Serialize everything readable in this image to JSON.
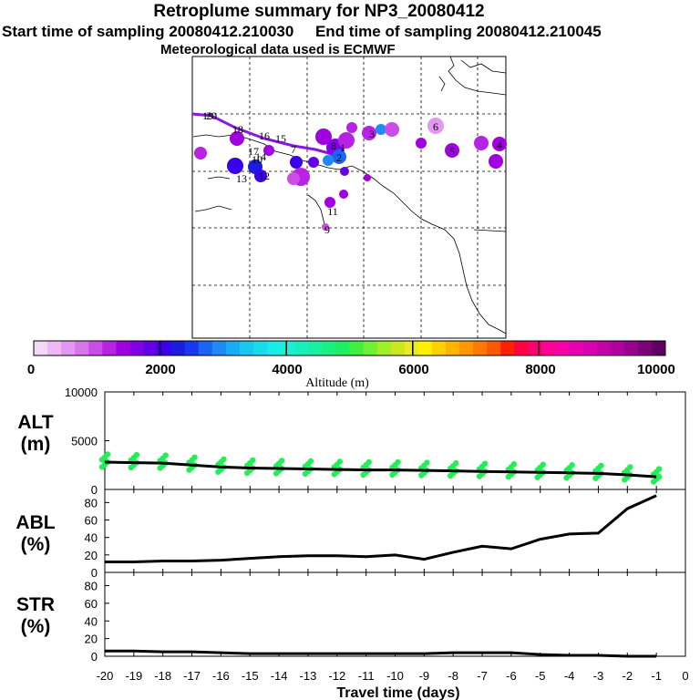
{
  "header": {
    "title": "Retroplume summary for NP3_20080412",
    "start_label": "Start time of sampling 20080412.210030",
    "end_label": "End time of sampling 20080412.210045",
    "met_label": "Meteorological data used is ECMWF"
  },
  "colorbar": {
    "ticks": [
      "0",
      "2000",
      "4000",
      "6000",
      "8000",
      "10000"
    ],
    "label": "Altitude (m)",
    "colors": [
      "#f4d8f8",
      "#eeb8f4",
      "#e298f0",
      "#d874ec",
      "#cc4ce8",
      "#b822e4",
      "#a000e0",
      "#8400e4",
      "#6400e8",
      "#3a00ec",
      "#1c1ce0",
      "#1838f0",
      "#1c64f4",
      "#1c8cf4",
      "#18acf4",
      "#18c8f0",
      "#18dcec",
      "#18ece8",
      "#18f0d8",
      "#18f0bc",
      "#18f0a0",
      "#18f080",
      "#1cf060",
      "#40f040",
      "#70f034",
      "#a0f028",
      "#cce620",
      "#ecec1c",
      "#fff000",
      "#ffd000",
      "#ffb400",
      "#ff9800",
      "#ff7800",
      "#ff5800",
      "#ff2000",
      "#ff0040",
      "#ff0070",
      "#ff0094",
      "#f800a8",
      "#e800b0",
      "#d800b0",
      "#c400a8",
      "#b000a0",
      "#980090",
      "#7c0078",
      "#600060"
    ]
  },
  "map": {
    "plume_labels": [
      "20",
      "19",
      "18",
      "17",
      "16",
      "15",
      "14",
      "13",
      "12",
      "11",
      "10",
      "9",
      "8",
      "7",
      "6",
      "5",
      "4",
      "3",
      "2",
      "1"
    ]
  },
  "chart_data": [
    {
      "type": "line",
      "name": "ALT",
      "ylabel": "ALT\n(m)",
      "ylabel_line1": "ALT",
      "ylabel_line2": "(m)",
      "yticks": [
        "10000",
        "5000",
        "0"
      ],
      "ylim": [
        0,
        10000
      ],
      "x": [
        -20,
        -19,
        -18,
        -17,
        -16,
        -15,
        -14,
        -13,
        -12,
        -11,
        -10,
        -9,
        -8,
        -7,
        -6,
        -5,
        -4,
        -3,
        -2,
        -1
      ],
      "values": [
        2800,
        2750,
        2700,
        2500,
        2300,
        2200,
        2150,
        2100,
        2050,
        2000,
        2000,
        1950,
        1900,
        1850,
        1800,
        1750,
        1700,
        1650,
        1500,
        1300
      ],
      "scatter_color": "#22ee55"
    },
    {
      "type": "line",
      "name": "ABL",
      "ylabel_line1": "ABL",
      "ylabel_line2": "(%)",
      "yticks": [
        "80",
        "60",
        "40",
        "20",
        "0"
      ],
      "ylim": [
        0,
        95
      ],
      "x": [
        -20,
        -19,
        -18,
        -17,
        -16,
        -15,
        -14,
        -13,
        -12,
        -11,
        -10,
        -9,
        -8,
        -7,
        -6,
        -5,
        -4,
        -3,
        -2,
        -1
      ],
      "values": [
        12,
        12,
        13,
        13,
        14,
        16,
        18,
        19,
        19,
        18,
        20,
        15,
        23,
        30,
        27,
        38,
        44,
        45,
        73,
        88
      ]
    },
    {
      "type": "line",
      "name": "STR",
      "ylabel_line1": "STR",
      "ylabel_line2": "(%)",
      "yticks": [
        "80",
        "60",
        "40",
        "20",
        "0"
      ],
      "ylim": [
        0,
        95
      ],
      "x": [
        -20,
        -19,
        -18,
        -17,
        -16,
        -15,
        -14,
        -13,
        -12,
        -11,
        -10,
        -9,
        -8,
        -7,
        -6,
        -5,
        -4,
        -3,
        -2,
        -1
      ],
      "values": [
        6,
        6,
        5,
        5,
        4,
        3,
        3,
        3,
        3,
        3,
        3,
        3,
        4,
        4,
        4,
        2,
        1,
        1,
        0,
        0
      ]
    }
  ],
  "xaxis": {
    "ticks": [
      "-20",
      "-19",
      "-18",
      "-17",
      "-16",
      "-15",
      "-14",
      "-13",
      "-12",
      "-11",
      "-10",
      "-9",
      "-8",
      "-7",
      "-6",
      "-5",
      "-4",
      "-3",
      "-2",
      "-1",
      "0"
    ],
    "label": "Travel time (days)"
  }
}
